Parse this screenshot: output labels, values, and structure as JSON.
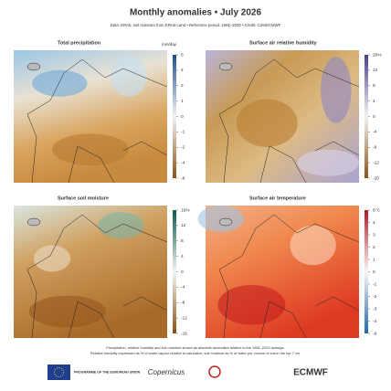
{
  "header": {
    "title": "Monthly anomalies • July 2026",
    "subtitle": "Data: ERA5, soil moisture from ERA5-Land • Reference period: 1991–2020 • Credit: C3S/ECMWF"
  },
  "panels": [
    {
      "title": "Total precipitation",
      "unit": "mm/day",
      "ticks": [
        "6",
        "4",
        "2",
        "1",
        "0",
        "-1",
        "-2",
        "-4",
        "-6"
      ]
    },
    {
      "title": "Surface air relative humidity",
      "ticks": [
        "20%",
        "12",
        "8",
        "4",
        "0",
        "-4",
        "-8",
        "-12",
        "-20"
      ]
    },
    {
      "title": "Surface soil moisture",
      "ticks": [
        "16%",
        "12",
        "8",
        "4",
        "0",
        "-4",
        "-8",
        "-12",
        "-16"
      ]
    },
    {
      "title": "Surface air temperature",
      "ticks": [
        "6°C",
        "4",
        "3",
        "2",
        "1",
        "0",
        "-1",
        "-2",
        "-3",
        "-4",
        "-6"
      ]
    }
  ],
  "footer": {
    "notes": [
      "Precipitation, relative humidity and soil moisture shown as absolute anomalies relative to the 1991–2020 average.",
      "Relative humidity expressed as % of water vapour relative to saturation; soil moisture as % of water per volume of soil in the top 7 cm."
    ],
    "logos": [
      "PROGRAMME OF THE EUROPEAN UNION",
      "Copernicus",
      "ECMWF"
    ]
  }
}
